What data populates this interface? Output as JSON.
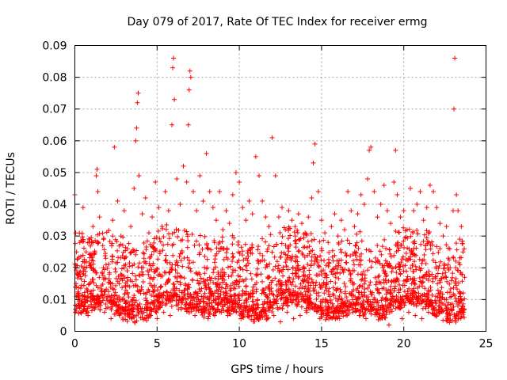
{
  "chart_data": {
    "type": "scatter",
    "title": "Day 079 of 2017, Rate Of TEC Index for receiver ermg",
    "xlabel": "GPS time / hours",
    "ylabel": "ROTI / TECUs",
    "xlim": [
      0,
      25
    ],
    "ylim": [
      0,
      0.09
    ],
    "x_ticks": [
      0,
      5,
      10,
      15,
      20,
      25
    ],
    "x_tick_labels": [
      "0",
      "5",
      "10",
      "15",
      "20",
      "25"
    ],
    "y_ticks": [
      0,
      0.01,
      0.02,
      0.03,
      0.04,
      0.05,
      0.06,
      0.07,
      0.08,
      0.09
    ],
    "y_tick_labels": [
      "0",
      "0.01",
      "0.02",
      "0.03",
      "0.04",
      "0.05",
      "0.06",
      "0.07",
      "0.08",
      "0.09"
    ],
    "grid": true,
    "marker": "plus",
    "color": "#ff0000",
    "series": [
      {
        "name": "ROTI",
        "x": [
          0.0,
          0.05,
          0.1,
          0.15,
          0.2,
          0.3,
          0.5,
          0.7,
          0.9,
          1.1,
          1.3,
          1.35,
          1.4,
          1.5,
          1.7,
          1.9,
          2.1,
          2.3,
          2.4,
          2.6,
          2.8,
          3.0,
          3.2,
          3.4,
          3.6,
          3.7,
          3.75,
          3.8,
          3.85,
          3.9,
          4.1,
          4.3,
          4.5,
          4.7,
          4.9,
          5.1,
          5.3,
          5.5,
          5.7,
          5.9,
          5.95,
          6.0,
          6.05,
          6.2,
          6.4,
          6.6,
          6.8,
          6.9,
          6.95,
          7.0,
          7.05,
          7.2,
          7.4,
          7.6,
          7.8,
          8.0,
          8.2,
          8.4,
          8.6,
          8.8,
          9.0,
          9.2,
          9.4,
          9.6,
          9.8,
          10.0,
          10.2,
          10.4,
          10.6,
          10.8,
          11.0,
          11.2,
          11.4,
          11.6,
          11.8,
          12.0,
          12.2,
          12.4,
          12.6,
          12.8,
          13.0,
          13.2,
          13.4,
          13.6,
          13.8,
          14.0,
          14.2,
          14.4,
          14.5,
          14.6,
          14.8,
          15.0,
          15.2,
          15.4,
          15.6,
          15.8,
          16.0,
          16.2,
          16.4,
          16.6,
          16.8,
          17.0,
          17.2,
          17.4,
          17.6,
          17.8,
          17.9,
          18.0,
          18.2,
          18.4,
          18.6,
          18.8,
          19.0,
          19.2,
          19.4,
          19.5,
          19.6,
          19.8,
          20.0,
          20.2,
          20.4,
          20.6,
          20.8,
          21.0,
          21.2,
          21.4,
          21.6,
          21.8,
          22.0,
          22.2,
          22.4,
          22.6,
          22.8,
          23.0,
          23.05,
          23.1,
          23.2,
          23.3,
          23.4,
          23.5,
          23.6,
          23.7,
          0.2,
          0.6,
          1.0,
          1.6,
          2.0,
          2.5,
          3.1,
          3.5,
          4.0,
          4.4,
          4.8,
          5.2,
          5.6,
          6.1,
          6.5,
          6.7,
          7.1,
          7.5,
          7.9,
          8.3,
          8.7,
          9.1,
          9.5,
          9.9,
          10.3,
          10.7,
          11.1,
          11.5,
          11.9,
          12.3,
          12.7,
          13.1,
          13.5,
          13.9,
          14.3,
          14.7,
          15.1,
          15.5,
          15.9,
          16.3,
          16.7,
          17.1,
          17.5,
          18.1,
          18.5,
          18.9,
          19.3,
          19.7,
          20.1,
          20.5,
          20.9,
          21.3,
          21.7,
          22.1,
          22.5,
          22.9,
          23.4,
          0.4,
          0.8,
          1.2,
          1.8,
          2.2,
          2.7,
          3.3,
          4.2,
          4.6,
          5.0,
          5.4,
          5.8,
          6.3,
          7.3,
          7.7,
          8.1,
          8.5,
          8.9,
          9.3,
          9.7,
          10.1,
          10.5,
          10.9,
          11.3,
          11.7,
          12.1,
          12.5,
          12.9,
          13.3,
          13.7,
          14.1,
          14.9,
          15.3,
          15.7,
          16.1,
          16.5,
          16.9,
          17.3,
          17.7,
          18.3,
          18.7,
          19.1,
          19.9,
          20.3,
          20.7,
          21.1,
          21.5,
          21.9,
          22.3,
          22.7,
          23.2,
          23.6
        ],
        "y": [
          0.043,
          0.031,
          0.025,
          0.018,
          0.012,
          0.028,
          0.039,
          0.022,
          0.015,
          0.033,
          0.049,
          0.051,
          0.044,
          0.036,
          0.027,
          0.021,
          0.018,
          0.035,
          0.058,
          0.041,
          0.03,
          0.038,
          0.026,
          0.033,
          0.045,
          0.06,
          0.064,
          0.072,
          0.075,
          0.049,
          0.037,
          0.042,
          0.031,
          0.036,
          0.047,
          0.039,
          0.033,
          0.044,
          0.038,
          0.065,
          0.083,
          0.086,
          0.073,
          0.048,
          0.04,
          0.052,
          0.047,
          0.065,
          0.076,
          0.082,
          0.08,
          0.044,
          0.038,
          0.049,
          0.041,
          0.056,
          0.044,
          0.039,
          0.035,
          0.044,
          0.032,
          0.038,
          0.034,
          0.043,
          0.05,
          0.047,
          0.039,
          0.035,
          0.041,
          0.037,
          0.055,
          0.049,
          0.041,
          0.036,
          0.033,
          0.061,
          0.049,
          0.036,
          0.039,
          0.032,
          0.038,
          0.035,
          0.03,
          0.037,
          0.034,
          0.031,
          0.036,
          0.042,
          0.053,
          0.059,
          0.044,
          0.035,
          0.031,
          0.028,
          0.033,
          0.037,
          0.03,
          0.035,
          0.032,
          0.044,
          0.038,
          0.033,
          0.037,
          0.043,
          0.04,
          0.048,
          0.057,
          0.058,
          0.044,
          0.036,
          0.04,
          0.046,
          0.038,
          0.034,
          0.047,
          0.057,
          0.043,
          0.036,
          0.038,
          0.032,
          0.045,
          0.038,
          0.04,
          0.044,
          0.035,
          0.039,
          0.046,
          0.044,
          0.039,
          0.034,
          0.03,
          0.033,
          0.026,
          0.038,
          0.07,
          0.086,
          0.043,
          0.038,
          0.029,
          0.033,
          0.025,
          0.017,
          0.008,
          0.01,
          0.012,
          0.009,
          0.011,
          0.008,
          0.013,
          0.01,
          0.012,
          0.009,
          0.011,
          0.014,
          0.01,
          0.012,
          0.009,
          0.013,
          0.011,
          0.01,
          0.012,
          0.009,
          0.011,
          0.01,
          0.013,
          0.009,
          0.012,
          0.011,
          0.01,
          0.013,
          0.009,
          0.011,
          0.012,
          0.01,
          0.008,
          0.011,
          0.009,
          0.012,
          0.01,
          0.011,
          0.013,
          0.009,
          0.012,
          0.01,
          0.011,
          0.009,
          0.012,
          0.01,
          0.011,
          0.013,
          0.009,
          0.01,
          0.012,
          0.011,
          0.009,
          0.012,
          0.01,
          0.011,
          0.012,
          0.006,
          0.005,
          0.007,
          0.006,
          0.004,
          0.005,
          0.007,
          0.006,
          0.005,
          0.004,
          0.006,
          0.005,
          0.007,
          0.005,
          0.006,
          0.004,
          0.005,
          0.006,
          0.005,
          0.007,
          0.004,
          0.006,
          0.005,
          0.006,
          0.004,
          0.005,
          0.003,
          0.006,
          0.004,
          0.005,
          0.006,
          0.004,
          0.005,
          0.006,
          0.004,
          0.005,
          0.006,
          0.005,
          0.004,
          0.006,
          0.005,
          0.002,
          0.004,
          0.006,
          0.005,
          0.004,
          0.006,
          0.005,
          0.007,
          0.004,
          0.005,
          0.006
        ]
      }
    ],
    "dense_region": {
      "note": "Dense cloud of points filling the lower band of the plot",
      "x_range": [
        0,
        23.7
      ],
      "y_typical_range": [
        0.003,
        0.03
      ]
    }
  }
}
